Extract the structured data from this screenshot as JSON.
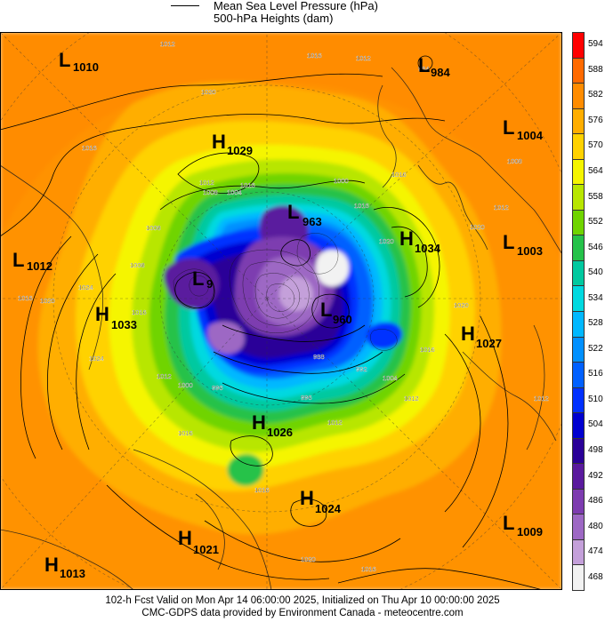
{
  "legend": {
    "mslp_label": "Mean Sea Level Pressure (hPa)",
    "heights_label": "500-hPa Heights (dam)"
  },
  "colorbar": {
    "levels": [
      "594",
      "588",
      "582",
      "576",
      "570",
      "564",
      "558",
      "552",
      "546",
      "540",
      "534",
      "528",
      "522",
      "516",
      "510",
      "504",
      "498",
      "492",
      "486",
      "480",
      "474",
      "468"
    ],
    "colors": [
      "#ff0000",
      "#ff6a00",
      "#ff8c00",
      "#ffae00",
      "#ffd200",
      "#f5f500",
      "#b8e600",
      "#6fd400",
      "#25c24a",
      "#00c9a0",
      "#00d9e0",
      "#00b8ff",
      "#0090ff",
      "#0060ff",
      "#0030ff",
      "#0000d0",
      "#2a0098",
      "#5a1a9e",
      "#7d3cb0",
      "#9d68c4",
      "#c4a0da",
      "#f2f2f2"
    ]
  },
  "pressure_systems": [
    {
      "type": "L",
      "value": "1010"
    },
    {
      "type": "L",
      "value": "984"
    },
    {
      "type": "H",
      "value": "1029"
    },
    {
      "type": "L",
      "value": "1004"
    },
    {
      "type": "L",
      "value": "963"
    },
    {
      "type": "H",
      "value": "1034"
    },
    {
      "type": "L",
      "value": "1003"
    },
    {
      "type": "L",
      "value": "1012"
    },
    {
      "type": "L",
      "value": "9"
    },
    {
      "type": "H",
      "value": "1033"
    },
    {
      "type": "L",
      "value": "960"
    },
    {
      "type": "H",
      "value": "1027"
    },
    {
      "type": "H",
      "value": "1026"
    },
    {
      "type": "H",
      "value": "1024"
    },
    {
      "type": "L",
      "value": "1009"
    },
    {
      "type": "H",
      "value": "1021"
    },
    {
      "type": "H",
      "value": "1013"
    }
  ],
  "contour_labels": [
    "1012",
    "1016",
    "1020",
    "1016",
    "1012",
    "1016",
    "1008",
    "1012",
    "1004",
    "984",
    "1012",
    "1016",
    "1000",
    "1016",
    "1020",
    "1008",
    "1020",
    "1008",
    "1024",
    "1008",
    "1024",
    "1016",
    "1020",
    "1016",
    "1012",
    "1000",
    "996",
    "992",
    "988",
    "996",
    "1004",
    "1012",
    "1016",
    "1012",
    "1016",
    "1020",
    "1016",
    "1020",
    "1012",
    "1016"
  ],
  "footer": {
    "line1": "102-h Fcst Valid on Mon Apr 14 06:00:00 2025, Initialized on Thu Apr 10 00:00:00 2025",
    "line2": "CMC-GDPS data provided by Environment Canada - meteocentre.com"
  }
}
